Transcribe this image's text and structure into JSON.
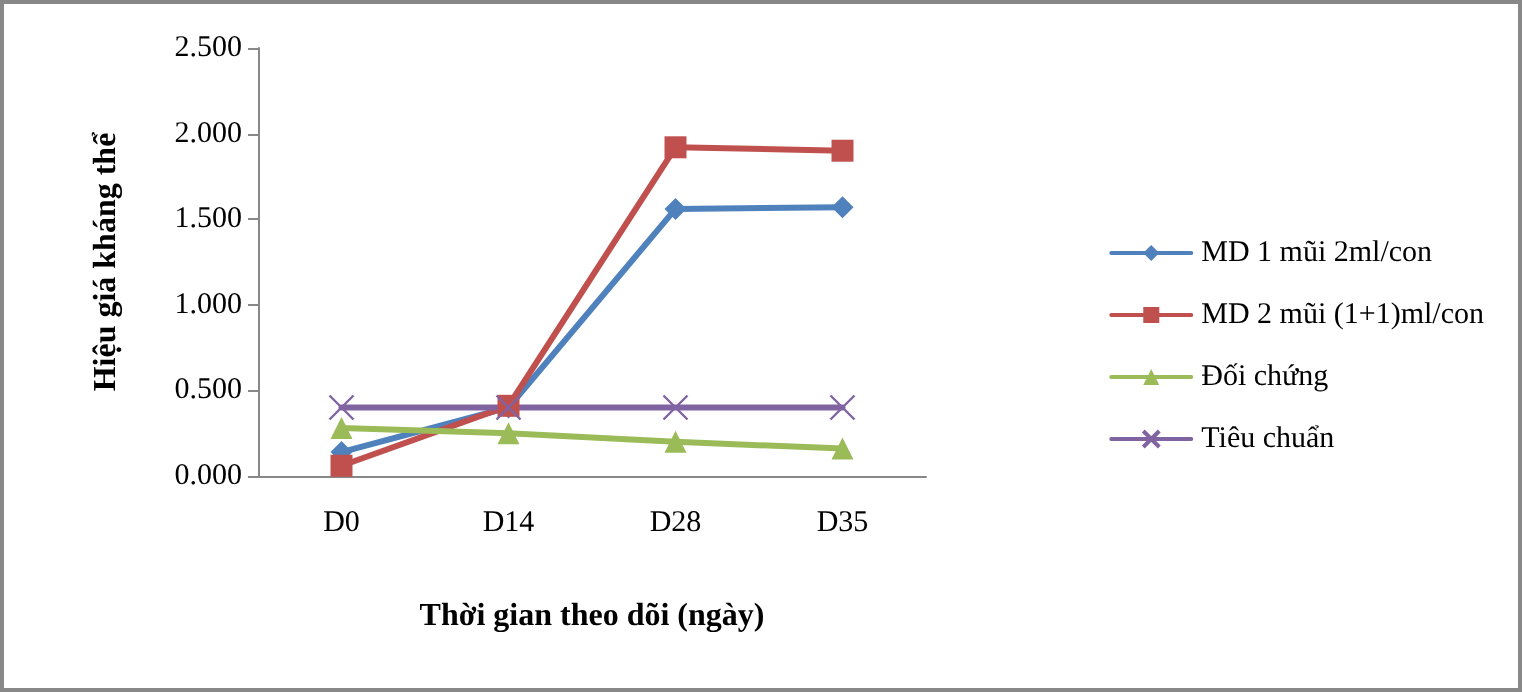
{
  "chart_data": {
    "type": "line",
    "xlabel": "Thời gian theo dõi (ngày)",
    "ylabel": "Hiệu giá kháng thể",
    "categories": [
      "D0",
      "D14",
      "D28",
      "D35"
    ],
    "series": [
      {
        "name": "MD 1 mũi 2ml/con",
        "color": "#4f81bd",
        "marker": "diamond",
        "values": [
          0.14,
          0.4,
          1.56,
          1.57
        ]
      },
      {
        "name": "MD 2 mũi (1+1)ml/con",
        "color": "#c0504d",
        "marker": "square",
        "values": [
          0.06,
          0.41,
          1.92,
          1.9
        ]
      },
      {
        "name": "Đối chứng",
        "color": "#9bbb59",
        "marker": "triangle",
        "values": [
          0.28,
          0.25,
          0.2,
          0.16
        ]
      },
      {
        "name": "Tiêu chuẩn",
        "color": "#8064a2",
        "marker": "cross",
        "values": [
          0.4,
          0.4,
          0.4,
          0.4
        ]
      }
    ],
    "ylim": [
      0,
      2.5
    ],
    "yticks": [
      {
        "value": 0,
        "label": "0.000"
      },
      {
        "value": 0.5,
        "label": "0.500"
      },
      {
        "value": 1,
        "label": "1.000"
      },
      {
        "value": 1.5,
        "label": "1.500"
      },
      {
        "value": 2,
        "label": "2.000"
      },
      {
        "value": 2.5,
        "label": "2.500"
      }
    ],
    "grid": false,
    "legend": "right",
    "line_style": "solid"
  }
}
